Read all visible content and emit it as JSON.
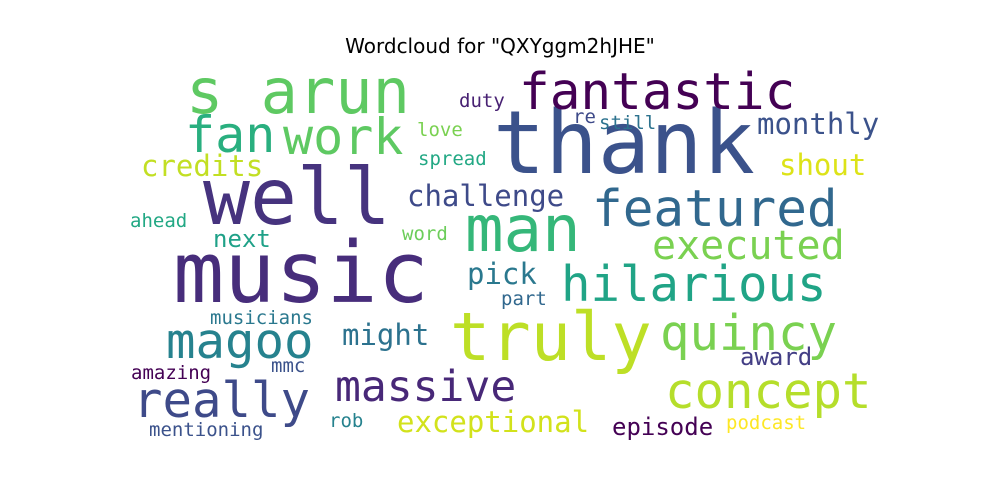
{
  "title": "Wordcloud for \"QXYggm2hJHE\"",
  "words": [
    {
      "text": "thank",
      "color": "#3b528b"
    },
    {
      "text": "music",
      "color": "#472d7b"
    },
    {
      "text": "well",
      "color": "#46337e"
    },
    {
      "text": "s arun",
      "color": "#5ec962"
    },
    {
      "text": "truly",
      "color": "#bddf26"
    },
    {
      "text": "fantastic",
      "color": "#440154"
    },
    {
      "text": "man",
      "color": "#35b779"
    },
    {
      "text": "featured",
      "color": "#31688e"
    },
    {
      "text": "hilarious",
      "color": "#20a486"
    },
    {
      "text": "work",
      "color": "#5ec962"
    },
    {
      "text": "fan",
      "color": "#29af7f"
    },
    {
      "text": "concept",
      "color": "#b5de2b"
    },
    {
      "text": "really",
      "color": "#3e4a89"
    },
    {
      "text": "magoo",
      "color": "#26828e"
    },
    {
      "text": "quincy",
      "color": "#7ad151"
    },
    {
      "text": "massive",
      "color": "#482878"
    },
    {
      "text": "executed",
      "color": "#7ad151"
    },
    {
      "text": "monthly",
      "color": "#3b528b"
    },
    {
      "text": "challenge",
      "color": "#3e4a89"
    },
    {
      "text": "exceptional",
      "color": "#d2e21b"
    },
    {
      "text": "credits",
      "color": "#c2df23"
    },
    {
      "text": "shout",
      "color": "#dde318"
    },
    {
      "text": "might",
      "color": "#2c728e"
    },
    {
      "text": "pick",
      "color": "#2a788e"
    },
    {
      "text": "award",
      "color": "#433e85"
    },
    {
      "text": "next",
      "color": "#1fa188"
    },
    {
      "text": "episode",
      "color": "#440154"
    },
    {
      "text": "duty",
      "color": "#482173"
    },
    {
      "text": "love",
      "color": "#7ad151"
    },
    {
      "text": "re",
      "color": "#3e4a89"
    },
    {
      "text": "still",
      "color": "#2c728e"
    },
    {
      "text": "spread",
      "color": "#22a884"
    },
    {
      "text": "ahead",
      "color": "#22a884"
    },
    {
      "text": "word",
      "color": "#6ccd5a"
    },
    {
      "text": "part",
      "color": "#31688e"
    },
    {
      "text": "musicians",
      "color": "#2a788e"
    },
    {
      "text": "amazing",
      "color": "#440154"
    },
    {
      "text": "mmc",
      "color": "#3b528b"
    },
    {
      "text": "rob",
      "color": "#26828e"
    },
    {
      "text": "mentioning",
      "color": "#3b528b"
    },
    {
      "text": "podcast",
      "color": "#fde725"
    }
  ]
}
